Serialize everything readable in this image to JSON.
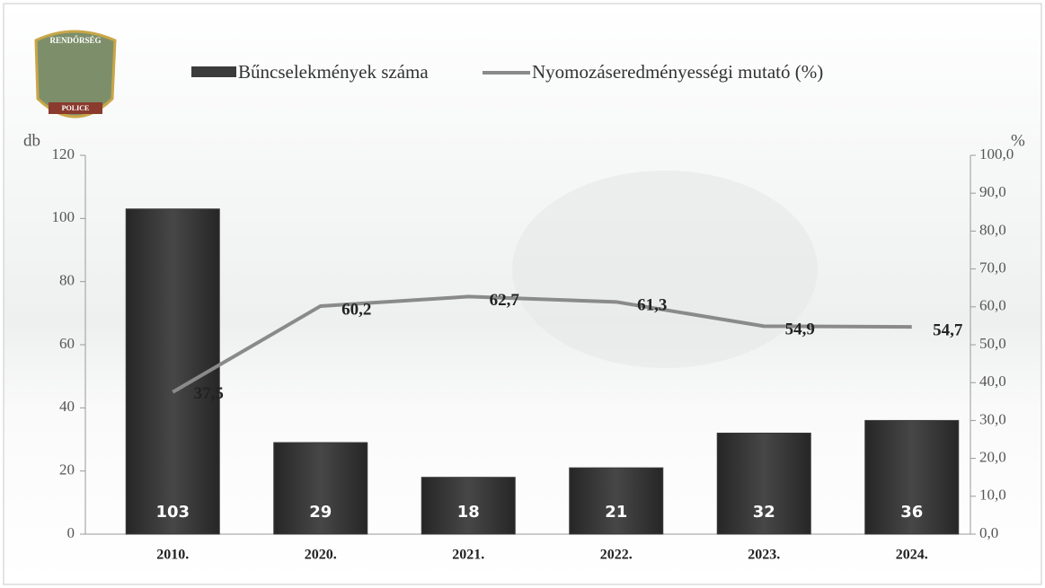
{
  "logo": {
    "top": "RENDŐRSÉG",
    "bottom": "POLICE"
  },
  "chart_data": {
    "type": "bar-line",
    "y_label": "db",
    "y2_label": "%",
    "categories": [
      "2010.",
      "2020.",
      "2021.",
      "2022.",
      "2023.",
      "2024."
    ],
    "series": [
      {
        "name": "Bűncselekmények száma",
        "color": "#3b3b3b",
        "values": [
          103,
          29,
          18,
          21,
          32,
          36
        ]
      },
      {
        "name": "Nyomozáseredményességi mutató (%)",
        "color": "#8a8a8a",
        "axis": "y2",
        "values": [
          37.5,
          60.2,
          62.7,
          61.3,
          54.9,
          54.7
        ],
        "value_labels": [
          "37,5",
          "60,2",
          "62,7",
          "61,3",
          "54,9",
          "54,7"
        ]
      }
    ],
    "ylim": [
      0,
      120
    ],
    "yticks": [
      0,
      20,
      40,
      60,
      80,
      100,
      120
    ],
    "y2lim": [
      0,
      100
    ],
    "y2ticks": [
      {
        "value": 0,
        "label": "0,0"
      },
      {
        "value": 10,
        "label": "10,0"
      },
      {
        "value": 20,
        "label": "20,0"
      },
      {
        "value": 30,
        "label": "30,0"
      },
      {
        "value": 40,
        "label": "40,0"
      },
      {
        "value": 50,
        "label": "50,0"
      },
      {
        "value": 60,
        "label": "60,0"
      },
      {
        "value": 70,
        "label": "70,0"
      },
      {
        "value": 80,
        "label": "80,0"
      },
      {
        "value": 90,
        "label": "90,0"
      },
      {
        "value": 100,
        "label": "100,0"
      }
    ]
  }
}
